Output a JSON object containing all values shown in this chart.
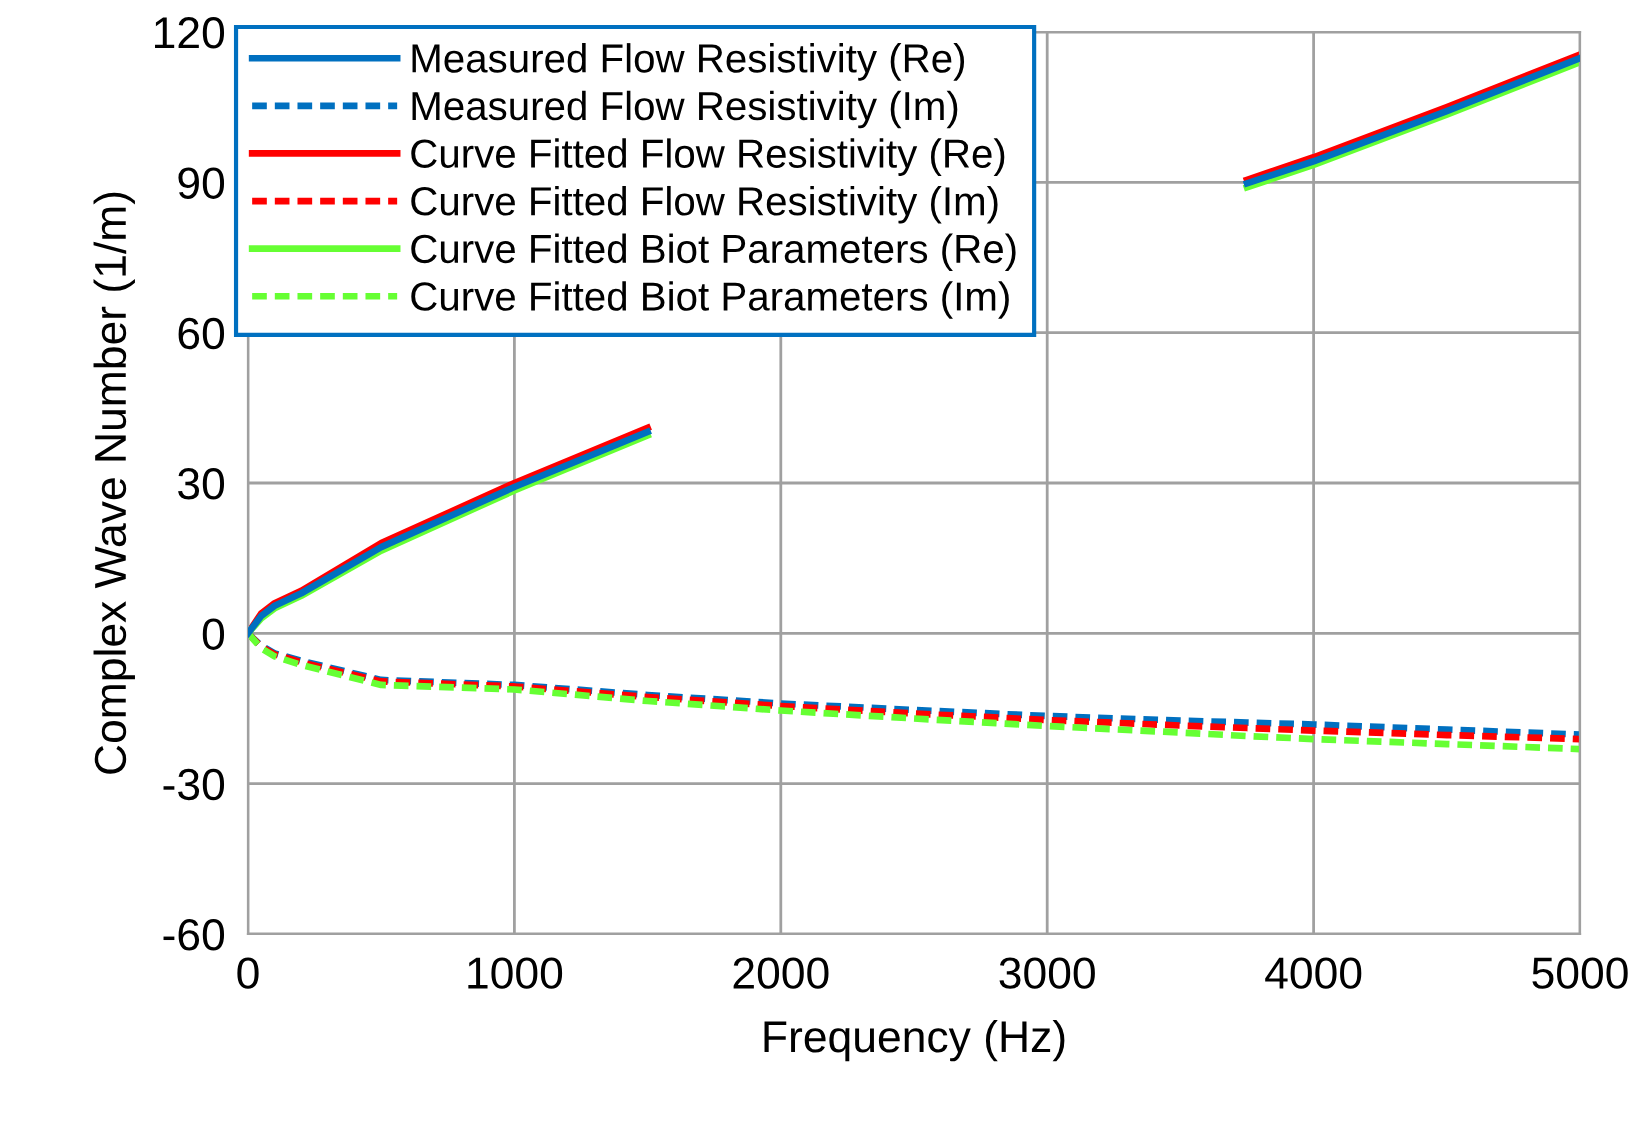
{
  "chart_data": {
    "type": "line",
    "xlabel": "Frequency (Hz)",
    "ylabel": "Complex Wave Number (1/m)",
    "x": [
      0,
      50,
      100,
      200,
      500,
      1000,
      1500,
      2000,
      2500,
      3000,
      3500,
      3750,
      4000,
      4500,
      5000
    ],
    "xlim": [
      0,
      5000
    ],
    "xticks": [
      0,
      1000,
      2000,
      3000,
      4000,
      5000
    ],
    "ylim": [
      -60,
      120
    ],
    "yticks": [
      -60,
      -30,
      0,
      30,
      60,
      90,
      120
    ],
    "grid": true,
    "legend": "top left",
    "marker": "none",
    "series": [
      {
        "name": "Measured Flow Resistivity (Re)",
        "color": "#0070c0",
        "line_style": "solid",
        "values": [
          0,
          3.5,
          5.5,
          8,
          17.2,
          29.2,
          40.2,
          null,
          null,
          null,
          null,
          89.8,
          94.2,
          104.2,
          114.8
        ]
      },
      {
        "name": "Measured Flow Resistivity (Im)",
        "color": "#0070c0",
        "line_style": "dashed",
        "values": [
          0,
          -2.5,
          -4,
          -5.5,
          -9.3,
          -10.3,
          -12.3,
          -14,
          -15.3,
          -16.5,
          -17.4,
          -17.8,
          -18.2,
          -19.2,
          -20.2
        ]
      },
      {
        "name": "Curve Fitted Flow Resistivity (Re)",
        "color": "#ff0000",
        "line_style": "solid",
        "values": [
          0,
          4,
          6,
          8.5,
          18,
          30,
          41,
          null,
          null,
          null,
          null,
          90.5,
          95,
          105,
          115.5
        ]
      },
      {
        "name": "Curve Fitted Flow Resistivity (Im)",
        "color": "#ff0000",
        "line_style": "dashed",
        "values": [
          0,
          -2.7,
          -4.2,
          -5.8,
          -9.6,
          -10.6,
          -12.7,
          -14.5,
          -16,
          -17.3,
          -18.4,
          -18.9,
          -19.4,
          -20.3,
          -21.1
        ]
      },
      {
        "name": "Curve Fitted Biot Parameters (Re)",
        "color": "#66ff33",
        "line_style": "solid",
        "values": [
          0,
          3,
          5,
          7.5,
          16.5,
          28.5,
          39.5,
          null,
          null,
          null,
          null,
          89,
          93.5,
          103.5,
          114
        ]
      },
      {
        "name": "Curve Fitted Biot Parameters (Im)",
        "color": "#66ff33",
        "line_style": "dashed",
        "values": [
          0,
          -3,
          -4.6,
          -6.3,
          -10.3,
          -11.2,
          -13.5,
          -15.4,
          -17,
          -18.5,
          -19.8,
          -20.5,
          -21.1,
          -22.1,
          -23.1
        ]
      }
    ]
  }
}
